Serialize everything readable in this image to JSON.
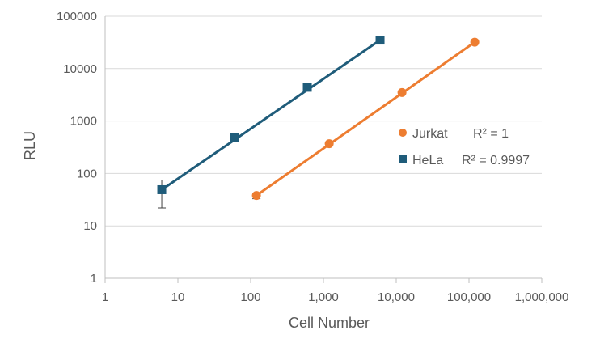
{
  "chart_data": {
    "type": "scatter",
    "x_scale": "log",
    "y_scale": "log",
    "title": "",
    "xlabel": "Cell Number",
    "ylabel": "RLU",
    "xlim": [
      1,
      1000000
    ],
    "ylim": [
      1,
      100000
    ],
    "x_tick_labels": [
      "1",
      "10",
      "100",
      "1,000",
      "10,000",
      "100,000",
      "1,000,000"
    ],
    "y_tick_labels": [
      "1",
      "10",
      "100",
      "1000",
      "10000",
      "100000"
    ],
    "grid": "horizontal",
    "legend_position": "right",
    "series": [
      {
        "name": "HeLa",
        "marker": "square",
        "color": "#1f5c7a",
        "x": [
          6,
          60,
          600,
          6000
        ],
        "y": [
          49,
          480,
          4400,
          35000
        ],
        "error_y": [
          [
            22,
            75
          ],
          null,
          null,
          null
        ],
        "r2_label": "R² = 0.9997"
      },
      {
        "name": "Jurkat",
        "marker": "circle",
        "color": "#ed7d31",
        "x": [
          120,
          1200,
          12000,
          120000
        ],
        "y": [
          38,
          370,
          3500,
          32000
        ],
        "error_y": [
          [
            33,
            42
          ],
          null,
          null,
          null
        ],
        "r2_label": "R² = 1"
      }
    ]
  }
}
